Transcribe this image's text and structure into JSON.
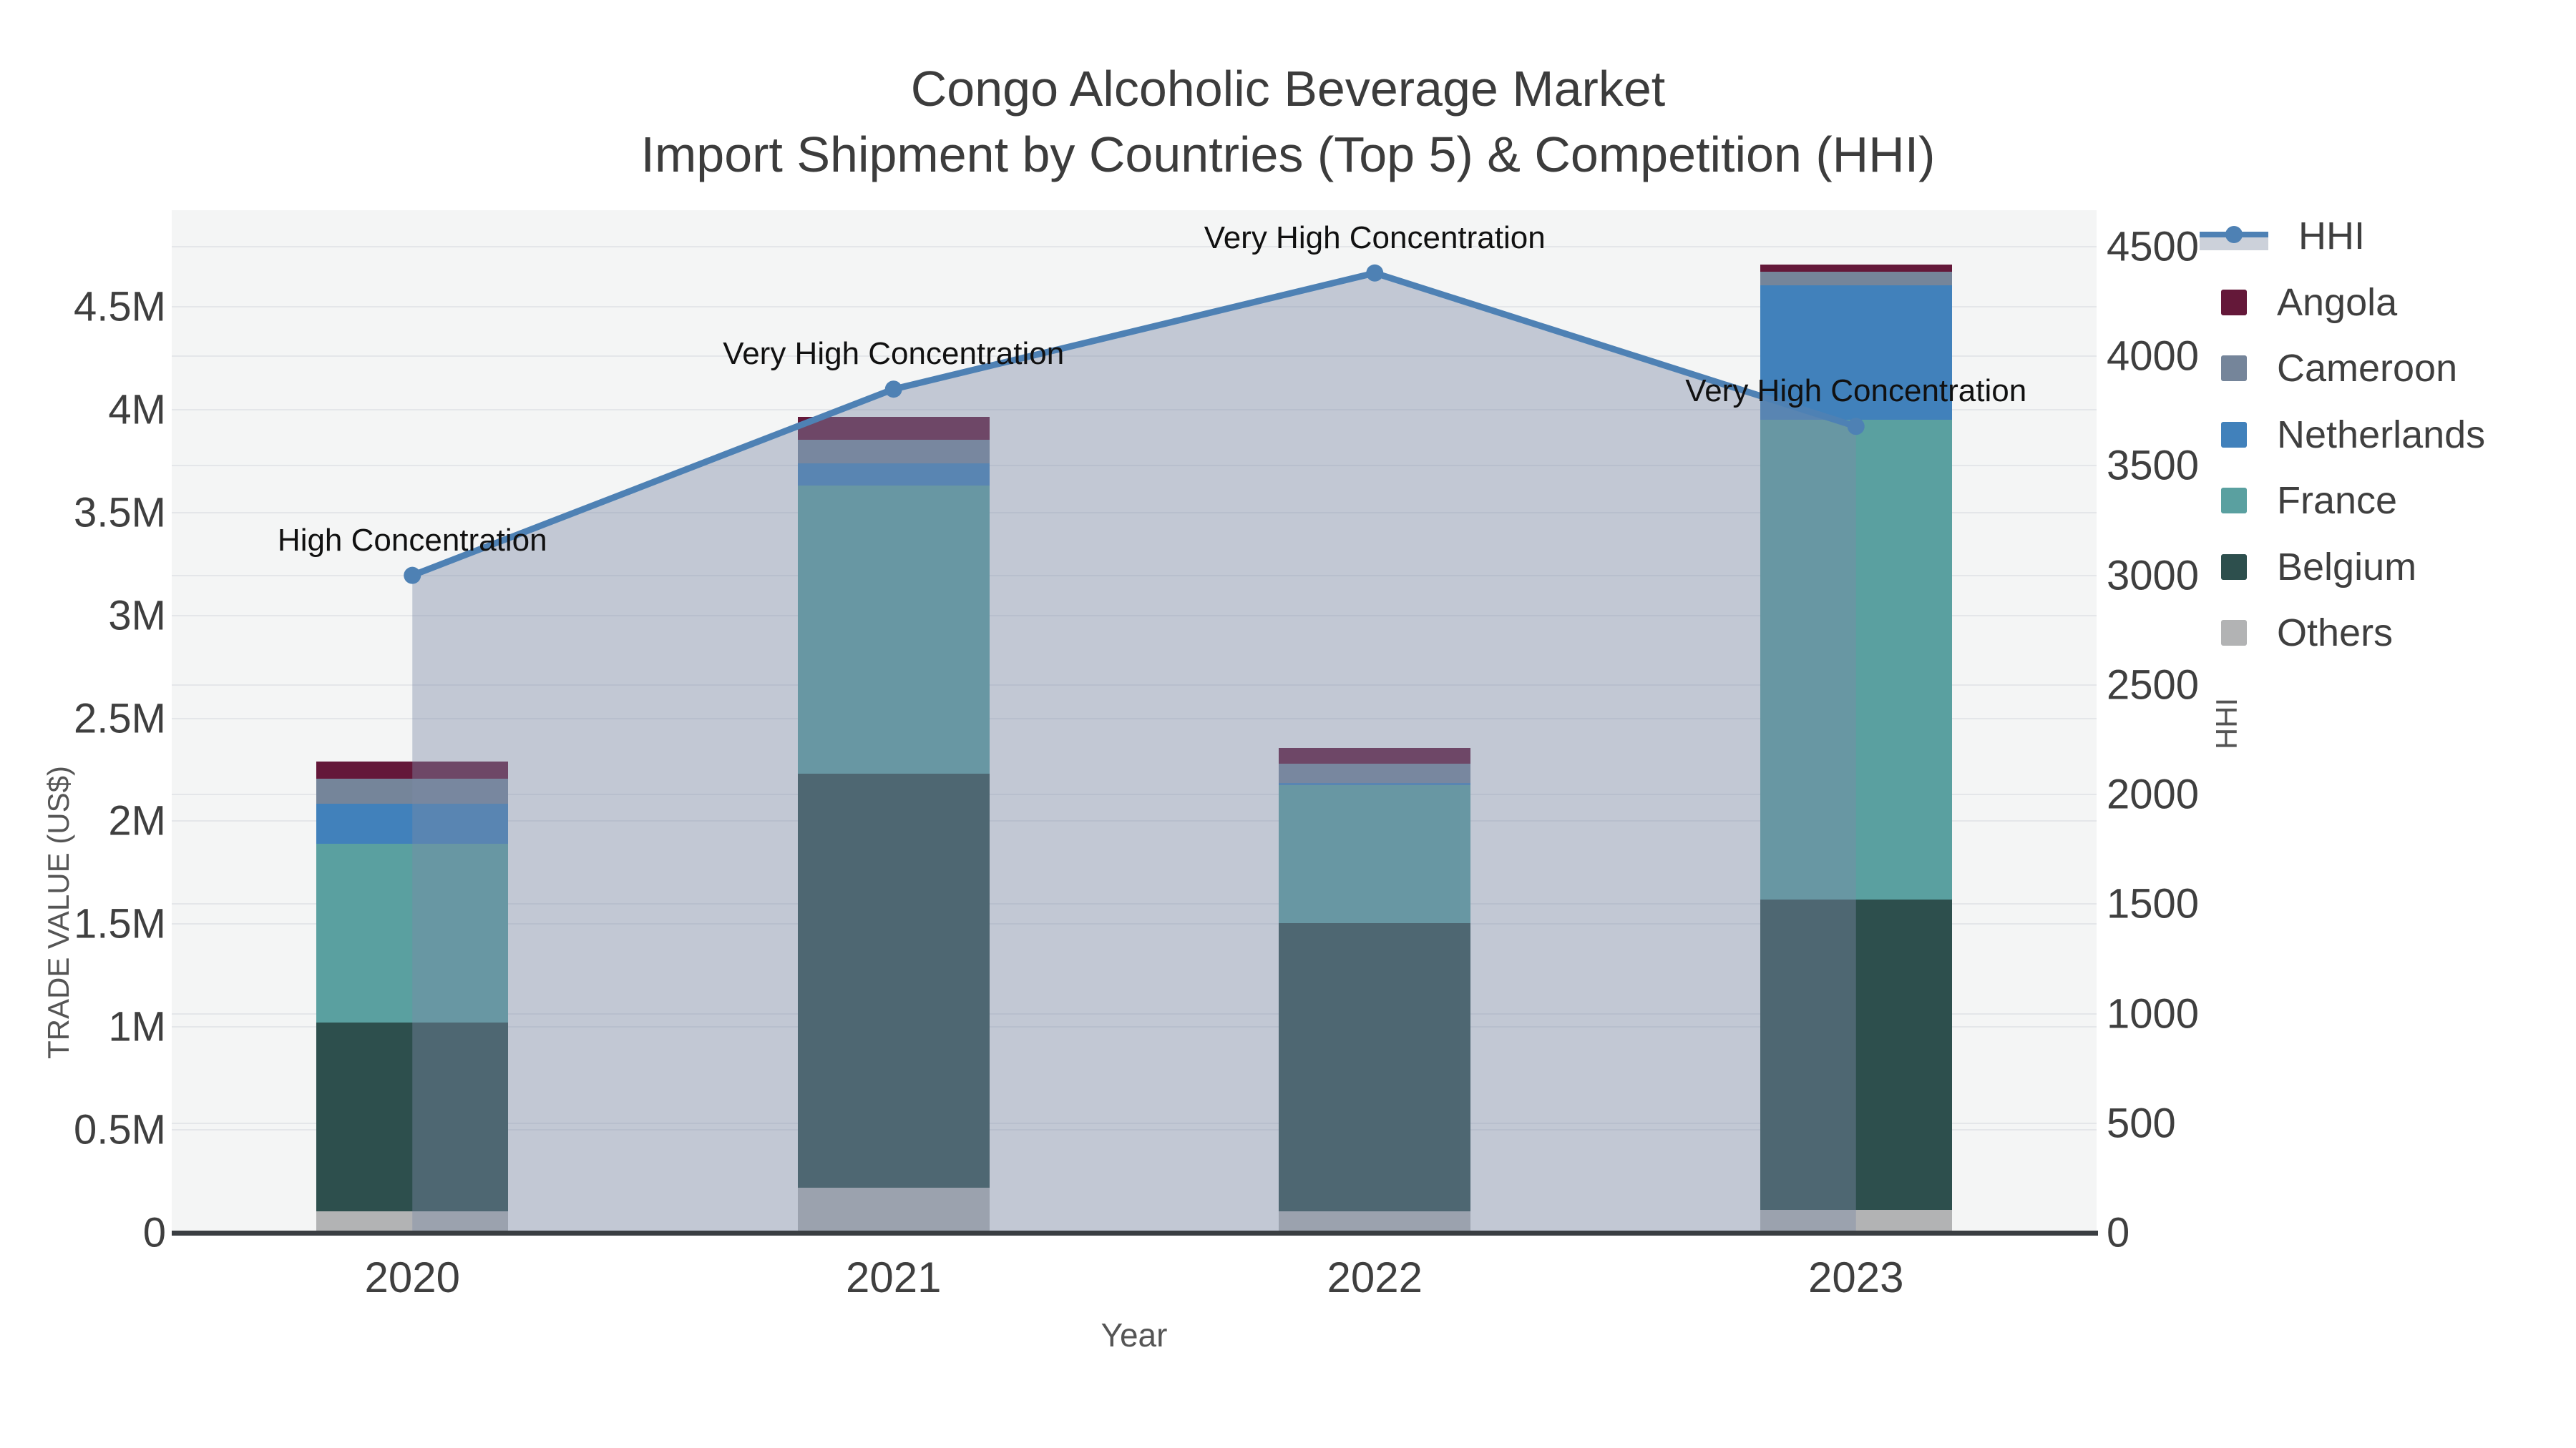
{
  "title": {
    "line1": "Congo Alcoholic Beverage Market",
    "line2": "Import Shipment by Countries (Top 5) & Competition (HHI)"
  },
  "axes": {
    "x": {
      "title": "Year",
      "categories": [
        "2020",
        "2021",
        "2022",
        "2023"
      ]
    },
    "y_left": {
      "title": "TRADE VALUE (US$)",
      "tick_labels": [
        "0",
        "0.5M",
        "1M",
        "1.5M",
        "2M",
        "2.5M",
        "3M",
        "3.5M",
        "4M",
        "4.5M"
      ],
      "tick_values": [
        0,
        500000,
        1000000,
        1500000,
        2000000,
        2500000,
        3000000,
        3500000,
        4000000,
        4500000
      ]
    },
    "y_right": {
      "title": "HHI",
      "tick_labels": [
        "0",
        "500",
        "1000",
        "1500",
        "2000",
        "2500",
        "3000",
        "3500",
        "4000",
        "4500"
      ],
      "tick_values": [
        0,
        500,
        1000,
        1500,
        2000,
        2500,
        3000,
        3500,
        4000,
        4500
      ]
    }
  },
  "legend": {
    "items": [
      {
        "label": "HHI",
        "type": "line",
        "color": "#4e81b4"
      },
      {
        "label": "Angola",
        "type": "square",
        "color": "#641839"
      },
      {
        "label": "Cameroon",
        "type": "square",
        "color": "#75859a"
      },
      {
        "label": "Netherlands",
        "type": "square",
        "color": "#4181bb"
      },
      {
        "label": "France",
        "type": "square",
        "color": "#5aa0a0"
      },
      {
        "label": "Belgium",
        "type": "square",
        "color": "#2d4f4d"
      },
      {
        "label": "Others",
        "type": "square",
        "color": "#b2b3b4"
      }
    ]
  },
  "chart_data": {
    "type": "combo-stacked-bar-and-line",
    "categories": [
      "2020",
      "2021",
      "2022",
      "2023"
    ],
    "bar_unit": "US$",
    "bar_series_bottom_to_top": [
      {
        "name": "Others",
        "color": "#b2b3b4",
        "values": [
          105000,
          220000,
          105000,
          110000
        ]
      },
      {
        "name": "Belgium",
        "color": "#2d4f4d",
        "values": [
          915000,
          2010000,
          1400000,
          1510000
        ]
      },
      {
        "name": "France",
        "color": "#5aa0a0",
        "values": [
          870000,
          1400000,
          670000,
          2330000
        ]
      },
      {
        "name": "Netherlands",
        "color": "#4181bb",
        "values": [
          195000,
          110000,
          10000,
          655000
        ]
      },
      {
        "name": "Cameroon",
        "color": "#75859a",
        "values": [
          120000,
          115000,
          95000,
          65000
        ]
      },
      {
        "name": "Angola",
        "color": "#641839",
        "values": [
          85000,
          110000,
          75000,
          35000
        ]
      }
    ],
    "bar_totals": [
      2290000,
      3965000,
      2345000,
      4705000
    ],
    "line_series": {
      "name": "HHI",
      "color": "#4e81b4",
      "area_fill": "rgba(124,139,167,0.42)",
      "values": [
        3000,
        3850,
        4380,
        3680
      ]
    },
    "point_annotations": [
      "High Concentration",
      "Very High Concentration",
      "Very High Concentration",
      "Very High Concentration"
    ],
    "title": "Congo Alcoholic Beverage Market — Import Shipment by Countries (Top 5) & Competition (HHI)",
    "xlabel": "Year",
    "ylabel_left": "TRADE VALUE (US$)",
    "ylabel_right": "HHI",
    "ylim_left": [
      0,
      4970000
    ],
    "ylim_right": [
      0,
      4670
    ],
    "grid": true,
    "legend_position": "right"
  }
}
